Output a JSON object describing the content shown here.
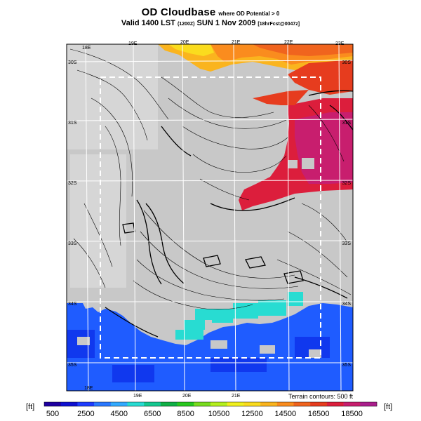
{
  "title": {
    "main": "OD Cloudbase",
    "qualifier": "where OD Potential > 0",
    "valid_prefix": "Valid 1400 LST",
    "utc": "(1200Z)",
    "date": "SUN 1 Nov 2009",
    "forecast": "[18hrFcst@0047z]"
  },
  "map": {
    "lon_labels": [
      "18E",
      "19E",
      "20E",
      "21E",
      "22E",
      "23E"
    ],
    "lon_labels_bottom": [
      "18E",
      "19E",
      "20E",
      "21E"
    ],
    "lat_labels_left": [
      "30S",
      "31S",
      "32S",
      "33S",
      "34S",
      "35S"
    ],
    "lat_labels_right": [
      "30S",
      "31S",
      "32S",
      "33S",
      "34S",
      "35S"
    ],
    "terrain_note": "Terrain contours: 500 ft",
    "land_color": "#c8c8c8",
    "sea_color": "#1f5cff"
  },
  "colorbar": {
    "unit_left": "[ft]",
    "unit_right": "[ft]",
    "tick_labels": [
      "500",
      "2500",
      "4500",
      "6500",
      "8500",
      "10500",
      "12500",
      "14500",
      "16500",
      "18500"
    ],
    "colors": [
      "#1e00a0",
      "#1010d0",
      "#1e3cff",
      "#2a78ff",
      "#32aaff",
      "#28dcd2",
      "#14c890",
      "#10b046",
      "#28c81e",
      "#78dc1e",
      "#b4f01e",
      "#f0f01e",
      "#fadc1e",
      "#fab41e",
      "#fa8c1e",
      "#f0641e",
      "#e63c1e",
      "#dc1e3c",
      "#c81e6e",
      "#aa1e8c"
    ]
  }
}
